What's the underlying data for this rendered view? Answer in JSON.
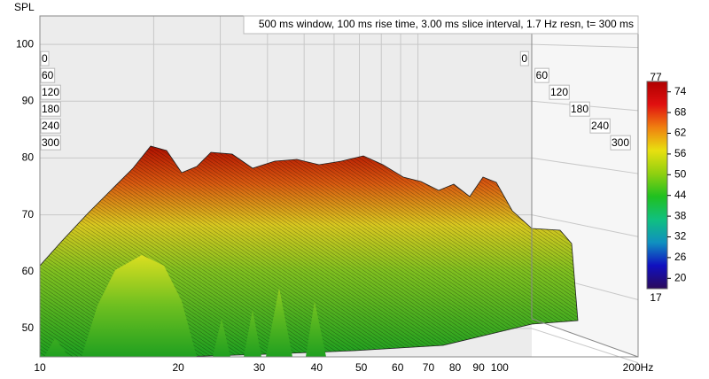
{
  "chart_data": {
    "type": "waterfall",
    "title": "500 ms window, 100 ms rise time, 3.00 ms slice interval, 1.7 Hz resn, t= 300 ms",
    "y_label": "SPL",
    "x_log": true,
    "xlim": [
      10,
      200
    ],
    "xticks": [
      10,
      20,
      30,
      40,
      50,
      60,
      70,
      80,
      90,
      100,
      {
        "value": 200,
        "label": "200Hz"
      }
    ],
    "ylim": [
      45,
      105
    ],
    "yticks": [
      50,
      60,
      70,
      80,
      90,
      100
    ],
    "zlim": [
      0,
      300
    ],
    "zticks": [
      0,
      60,
      120,
      180,
      240,
      300
    ],
    "color_range_labels": [
      77,
      17
    ],
    "clim": [
      17,
      77
    ],
    "cticks": [
      20,
      26,
      32,
      38,
      44,
      50,
      56,
      62,
      68,
      74
    ],
    "colormap": [
      "#2a0a5a",
      "#1010c0",
      "#1090c0",
      "#10c080",
      "#20c020",
      "#90d010",
      "#e8e010",
      "#f08010",
      "#e01010",
      "#b00000"
    ],
    "grid": true
  }
}
